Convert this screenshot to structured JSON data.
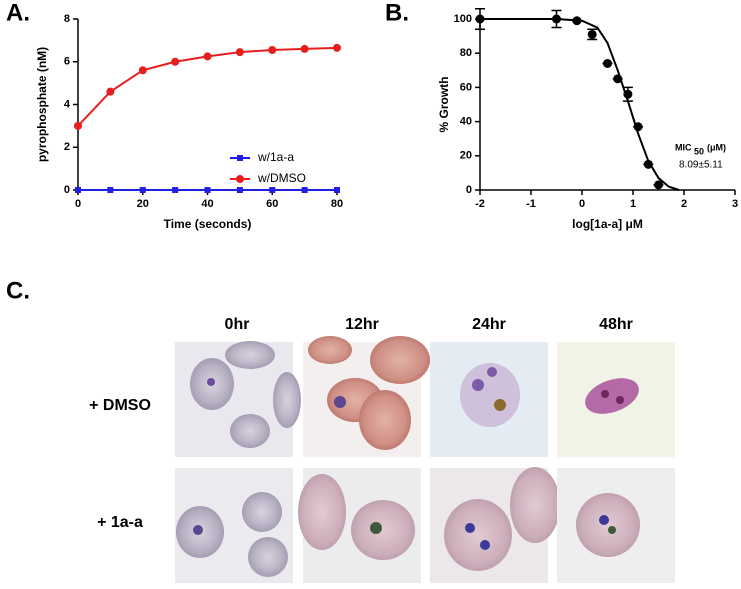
{
  "panels": {
    "a": "A.",
    "b": "B.",
    "c": "C."
  },
  "chart_data": [
    {
      "type": "line",
      "x_label": "Time (seconds)",
      "y_label": "pyrophosphate (nM)",
      "x": [
        0,
        10,
        20,
        30,
        40,
        50,
        60,
        70,
        80
      ],
      "series": [
        {
          "name": "w/1a-a",
          "color": "#1f1fe6",
          "marker": "square",
          "values": [
            0,
            0,
            0,
            0,
            0,
            0,
            0,
            0,
            0
          ]
        },
        {
          "name": "w/DMSO",
          "color": "#e61e1e",
          "marker": "circle",
          "values": [
            3.0,
            4.6,
            5.6,
            6.0,
            6.25,
            6.45,
            6.55,
            6.6,
            6.65
          ]
        }
      ],
      "xlim": [
        0,
        80
      ],
      "xticks": [
        0,
        20,
        40,
        60,
        80
      ],
      "ylim": [
        0,
        8
      ],
      "yticks": [
        0,
        2,
        4,
        6,
        8
      ]
    },
    {
      "type": "scatter",
      "x_label": "log[1a-a] μM",
      "y_label": "% Growth",
      "x": [
        -2,
        -0.5,
        -0.1,
        0.2,
        0.5,
        0.7,
        0.9,
        1.1,
        1.3,
        1.5
      ],
      "values": [
        100,
        100,
        99,
        91,
        74,
        65,
        56,
        37,
        15,
        3
      ],
      "errors": [
        6,
        5,
        0,
        3,
        0,
        0,
        4,
        0,
        0,
        0
      ],
      "color": "#000000",
      "fit": {
        "x": [
          -2,
          -1,
          -0.5,
          0,
          0.3,
          0.5,
          0.7,
          0.9,
          1.1,
          1.3,
          1.5,
          1.7,
          1.9
        ],
        "values": [
          100,
          100,
          100,
          99,
          95,
          86,
          70,
          52,
          33,
          17,
          7,
          2,
          0
        ]
      },
      "annotation": {
        "label": "MIC",
        "subscript": "50",
        "unit": "(μM)",
        "value": "8.09±5.11"
      },
      "xlim": [
        -2,
        3
      ],
      "xticks": [
        -2,
        -1,
        0,
        1,
        2,
        3
      ],
      "ylim": [
        0,
        100
      ],
      "yticks": [
        0,
        20,
        40,
        60,
        80,
        100
      ]
    }
  ],
  "micrographs": {
    "columns": [
      "0hr",
      "12hr",
      "24hr",
      "48hr"
    ],
    "rows": [
      "+ DMSO",
      "+ 1a-a"
    ]
  }
}
